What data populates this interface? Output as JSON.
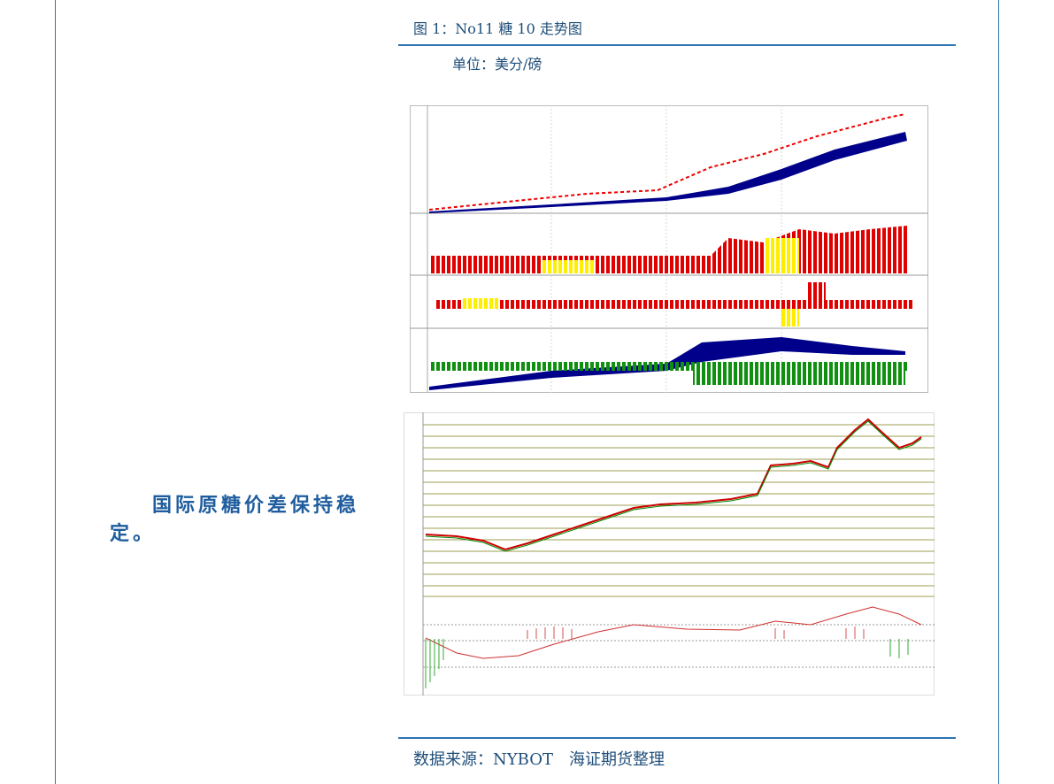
{
  "figure": {
    "caption": "图 1：No11 糖 10 走势图",
    "unit": "单位：美分/磅"
  },
  "body": {
    "paragraph": "国际原糖价差保持稳定。"
  },
  "footer": {
    "source": "数据来源：NYBOT　海证期货整理"
  }
}
